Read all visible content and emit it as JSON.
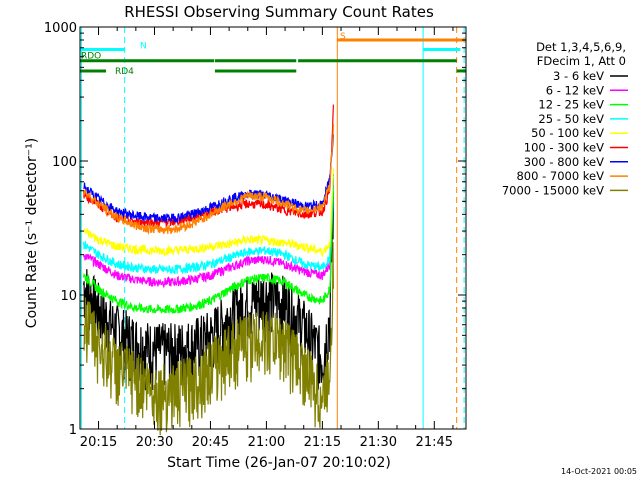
{
  "chart_data": {
    "type": "line",
    "title": "RHESSI Observing Summary Count Rates",
    "xlabel": "Start Time (26-Jan-07 20:10:02)",
    "ylabel": "Count Rate (s⁻¹ detector⁻¹)",
    "x_ticks": [
      "20:15",
      "20:30",
      "20:45",
      "21:00",
      "21:15",
      "21:30",
      "21:45"
    ],
    "x_tick_minutes": [
      15,
      30,
      45,
      60,
      75,
      90,
      105
    ],
    "xlim_minutes": [
      10.03,
      113.5
    ],
    "y_scale": "log",
    "ylim": [
      1,
      1000
    ],
    "y_ticks": [
      "1",
      "10",
      "100",
      "1000"
    ],
    "legend_header": [
      "Det 1,3,4,5,6,9,",
      "FDecim 1, Att 0"
    ],
    "legend_placement": "right",
    "series": [
      {
        "name": "3 - 6 keV",
        "color": "#000000",
        "x": [
          11,
          15,
          20,
          25,
          30,
          35,
          40,
          45,
          50,
          55,
          60,
          65,
          70,
          75,
          77,
          78
        ],
        "y": [
          12,
          8,
          5.5,
          4.5,
          4,
          4,
          4.3,
          5,
          7,
          9,
          10,
          9,
          6,
          3.5,
          7,
          60
        ]
      },
      {
        "name": "6 - 12 keV",
        "color": "#ff00ff",
        "x": [
          11,
          15,
          20,
          25,
          30,
          35,
          40,
          45,
          50,
          55,
          60,
          65,
          70,
          75,
          77,
          78
        ],
        "y": [
          20,
          17,
          14,
          13,
          12.5,
          12.5,
          13,
          14,
          16,
          18,
          18.5,
          17,
          15,
          14,
          17,
          75
        ]
      },
      {
        "name": "12 - 25 keV",
        "color": "#00ff00",
        "x": [
          11,
          15,
          20,
          25,
          30,
          35,
          40,
          45,
          50,
          55,
          60,
          65,
          70,
          75,
          77,
          78
        ],
        "y": [
          14,
          11,
          9,
          8,
          7.8,
          7.8,
          8.2,
          9,
          11,
          13,
          13.5,
          12.5,
          10,
          9,
          11,
          70
        ]
      },
      {
        "name": "25 - 50 keV",
        "color": "#00ffff",
        "x": [
          11,
          15,
          20,
          25,
          30,
          35,
          40,
          45,
          50,
          55,
          60,
          65,
          70,
          75,
          77,
          78
        ],
        "y": [
          24,
          20,
          17,
          16,
          15.5,
          15.5,
          16,
          17,
          19,
          21,
          21.5,
          20,
          17,
          16,
          19,
          80
        ]
      },
      {
        "name": "50 - 100 keV",
        "color": "#ffff00",
        "x": [
          11,
          15,
          20,
          25,
          30,
          35,
          40,
          45,
          50,
          55,
          60,
          65,
          70,
          75,
          77,
          78
        ],
        "y": [
          30,
          26,
          23,
          22,
          21.5,
          21.5,
          22,
          23,
          24,
          26,
          25.5,
          24.5,
          23,
          21,
          24,
          90
        ]
      },
      {
        "name": "100 - 300 keV",
        "color": "#ff0000",
        "x": [
          11,
          15,
          20,
          25,
          30,
          35,
          40,
          45,
          50,
          55,
          60,
          65,
          70,
          75,
          77,
          78
        ],
        "y": [
          57,
          47,
          38,
          35,
          35,
          35,
          38,
          42,
          45,
          48,
          47,
          43,
          40,
          42,
          60,
          260
        ]
      },
      {
        "name": "300 - 800 keV",
        "color": "#0000ff",
        "x": [
          11,
          15,
          20,
          25,
          30,
          35,
          40,
          45,
          50,
          55,
          60,
          65,
          70,
          75,
          77,
          78
        ],
        "y": [
          65,
          52,
          42,
          39,
          37.5,
          37.5,
          40,
          45,
          52,
          57,
          56,
          51,
          46,
          47,
          75,
          170
        ]
      },
      {
        "name": "800 - 7000 keV",
        "color": "#ff8000",
        "x": [
          11,
          15,
          20,
          25,
          30,
          35,
          40,
          45,
          50,
          55,
          60,
          65,
          70,
          75,
          77,
          78
        ],
        "y": [
          60,
          48,
          38,
          33,
          31,
          31,
          34,
          40,
          48,
          55,
          54,
          48,
          42,
          46,
          65,
          190
        ]
      },
      {
        "name": "7000 - 15000 keV",
        "color": "#808000",
        "x": [
          11,
          15,
          20,
          25,
          30,
          35,
          40,
          45,
          50,
          55,
          60,
          65,
          70,
          75,
          77,
          78
        ],
        "y": [
          7,
          4.5,
          3,
          2.5,
          2,
          2,
          2.3,
          3,
          4,
          4.8,
          5,
          4.5,
          3,
          1.7,
          3,
          25
        ]
      }
    ],
    "flag_bars": [
      {
        "label": "N",
        "color": "#00ffff",
        "segments_minutes": [
          [
            10.03,
            22
          ],
          [
            102,
            112
          ]
        ],
        "level": 680
      },
      {
        "label": "RDO",
        "color": "#008000",
        "segments_minutes": [
          [
            10.03,
            46
          ],
          [
            46.2,
            68
          ],
          [
            68.5,
            111
          ]
        ],
        "level": 560
      },
      {
        "label": "RD4",
        "color": "#008000",
        "segments_minutes": [
          [
            10.03,
            17
          ],
          [
            46.2,
            68
          ],
          [
            111,
            113.5
          ]
        ],
        "level": 470
      },
      {
        "label": "S",
        "color": "#ff8000",
        "segments_minutes": [
          [
            79,
            113.5
          ]
        ],
        "level": 800
      }
    ],
    "vertical_markers": [
      {
        "color": "#00ffff",
        "style": "solid",
        "minute": 10.4
      },
      {
        "color": "#00ffff",
        "style": "dashed",
        "minute": 22
      },
      {
        "color": "#ff8000",
        "style": "solid",
        "minute": 79
      },
      {
        "color": "#00ffff",
        "style": "solid",
        "minute": 102
      },
      {
        "color": "#ff8000",
        "style": "dashed",
        "minute": 111
      },
      {
        "color": "#00ffff",
        "style": "dashed",
        "minute": 113
      }
    ]
  },
  "footer": {
    "generated": "14-Oct-2021 00:05"
  }
}
